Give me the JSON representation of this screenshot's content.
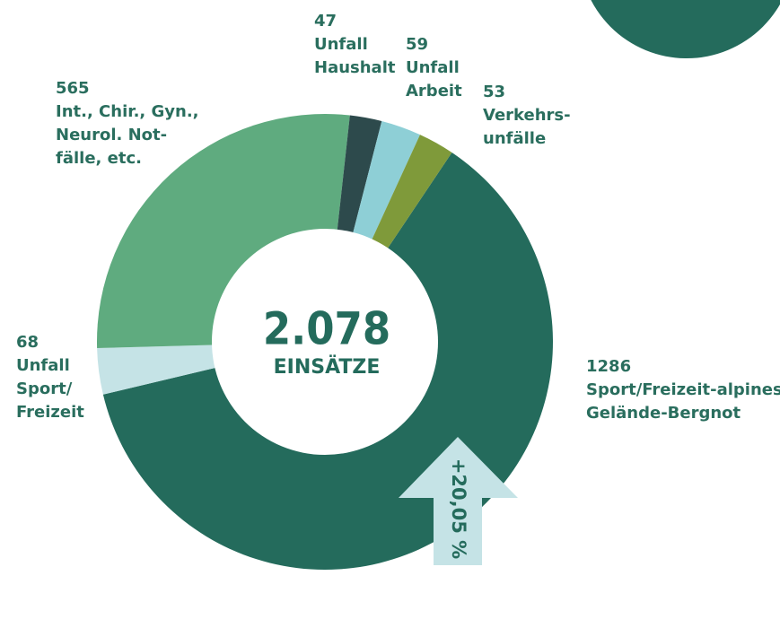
{
  "chart_data": {
    "type": "donut",
    "total": {
      "value": 2078,
      "label": "2.078"
    },
    "subtitle": "EINSÄTZE",
    "annotation": "+20,05 %",
    "categories": [
      [
        "Sport/Freizeit-alpines",
        "Gelände-Bergnot"
      ],
      [
        "Unfall",
        "Sport/",
        "Freizeit"
      ],
      [
        "Int., Chir., Gyn.,",
        "Neurol. Not-",
        "fälle, etc."
      ],
      [
        "Unfall",
        "Haushalt"
      ],
      [
        "Unfall",
        "Arbeit"
      ],
      [
        "Verkehrs-",
        "unfälle"
      ]
    ],
    "values": [
      1286,
      68,
      565,
      47,
      59,
      53
    ],
    "colors": [
      "#246b5c",
      "#c5e3e6",
      "#5fab7f",
      "#2d4a4c",
      "#8ecfd6",
      "#7f9a3a"
    ]
  }
}
